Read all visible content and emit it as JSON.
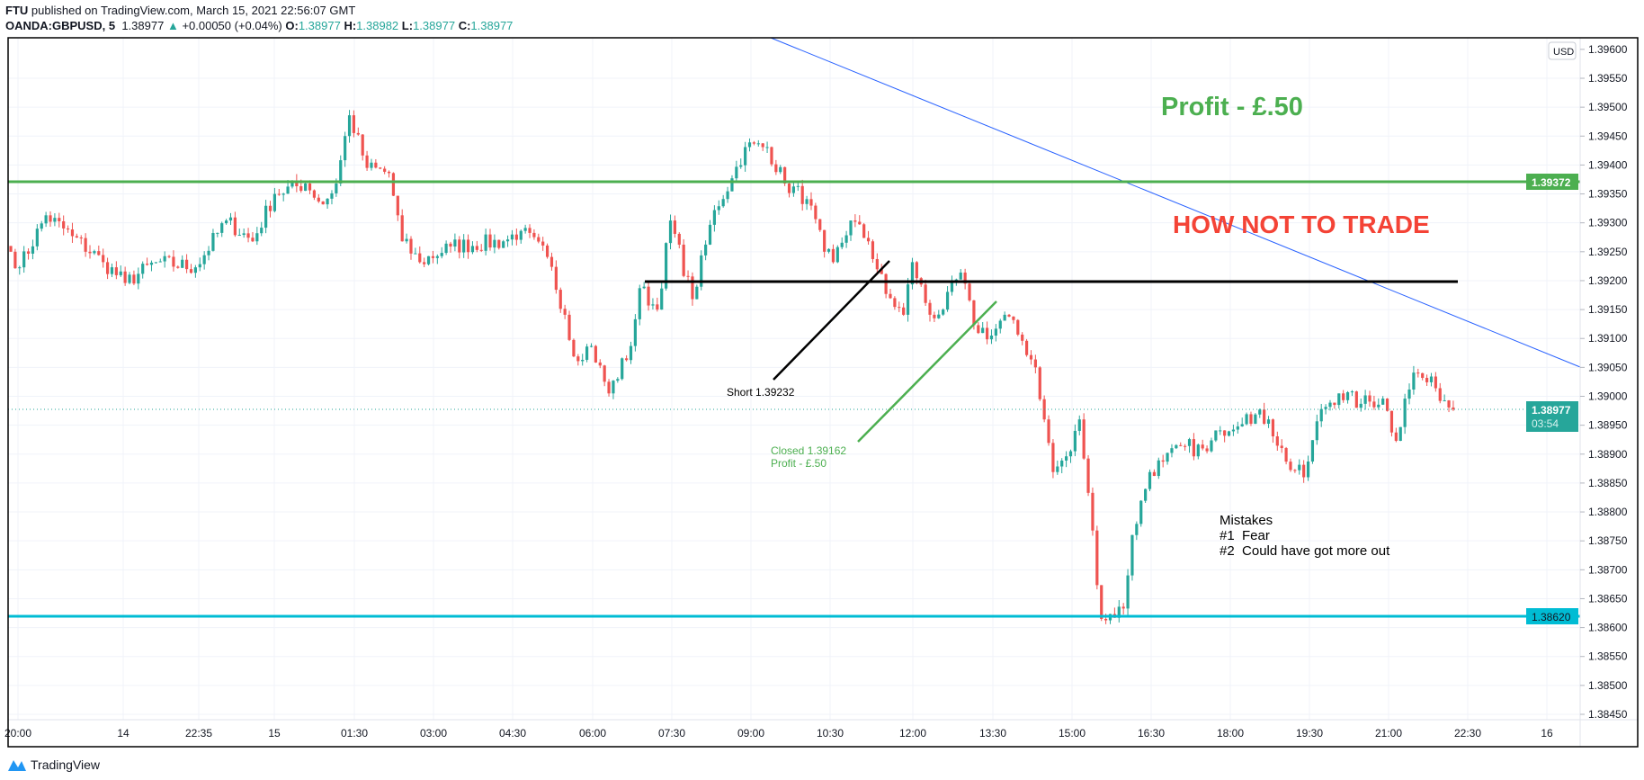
{
  "header": {
    "publisher": "FTU",
    "published_text": "published on TradingView.com, March 15, 2021 22:56:07 GMT",
    "symbol": "OANDA:GBPUSD, 5",
    "last": "1.38977",
    "change": "+0.00050 (+0.04%)",
    "o_label": "O:",
    "o": "1.38977",
    "h_label": "H:",
    "h": "1.38982",
    "l_label": "L:",
    "l": "1.38977",
    "c_label": "C:",
    "c": "1.38977"
  },
  "currency_button": "USD",
  "footer": {
    "logo_text": "TradingView"
  },
  "colors": {
    "up": "#26a69a",
    "down": "#ef5350",
    "resistance": "#4caf50",
    "support": "#00bcd4",
    "trend": "#2962ff"
  },
  "chart_data": {
    "type": "candlestick",
    "symbol": "GBPUSD",
    "timeframe": "5",
    "ylim": [
      1.3842,
      1.3962
    ],
    "y_ticks": [
      "1.39600",
      "1.39550",
      "1.39500",
      "1.39450",
      "1.39400",
      "1.39350",
      "1.39300",
      "1.39250",
      "1.39200",
      "1.39150",
      "1.39100",
      "1.39050",
      "1.39000",
      "1.38950",
      "1.38900",
      "1.38850",
      "1.38800",
      "1.38750",
      "1.38700",
      "1.38650",
      "1.38600",
      "1.38550",
      "1.38500",
      "1.38450"
    ],
    "x_ticks": [
      "20:00",
      "14",
      "22:35",
      "15",
      "01:30",
      "03:00",
      "04:30",
      "06:00",
      "07:30",
      "09:00",
      "10:30",
      "12:00",
      "13:30",
      "15:00",
      "16:30",
      "18:00",
      "19:30",
      "21:00",
      "22:30",
      "16"
    ],
    "close_keypoints": [
      [
        0,
        1.3925
      ],
      [
        2,
        1.39223
      ],
      [
        8,
        1.39313
      ],
      [
        14,
        1.39277
      ],
      [
        21,
        1.39232
      ],
      [
        26,
        1.39196
      ],
      [
        33,
        1.39232
      ],
      [
        42,
        1.39223
      ],
      [
        49,
        1.39304
      ],
      [
        55,
        1.39268
      ],
      [
        60,
        1.3935
      ],
      [
        67,
        1.39368
      ],
      [
        71,
        1.39332
      ],
      [
        74,
        1.39368
      ],
      [
        77,
        1.39486
      ],
      [
        81,
        1.39395
      ],
      [
        86,
        1.39386
      ],
      [
        89,
        1.39268
      ],
      [
        93,
        1.39232
      ],
      [
        100,
        1.39259
      ],
      [
        112,
        1.39268
      ],
      [
        116,
        1.39286
      ],
      [
        122,
        1.39241
      ],
      [
        126,
        1.39141
      ],
      [
        128,
        1.39069
      ],
      [
        132,
        1.39087
      ],
      [
        136,
        1.39005
      ],
      [
        141,
        1.39087
      ],
      [
        143,
        1.39187
      ],
      [
        147,
        1.3915
      ],
      [
        150,
        1.39304
      ],
      [
        155,
        1.39168
      ],
      [
        160,
        1.39322
      ],
      [
        164,
        1.39377
      ],
      [
        167,
        1.39431
      ],
      [
        172,
        1.39431
      ],
      [
        176,
        1.39368
      ],
      [
        181,
        1.39341
      ],
      [
        185,
        1.3925
      ],
      [
        187,
        1.39232
      ],
      [
        191,
        1.39304
      ],
      [
        195,
        1.39268
      ],
      [
        199,
        1.39177
      ],
      [
        203,
        1.39141
      ],
      [
        205,
        1.39232
      ],
      [
        209,
        1.39141
      ],
      [
        212,
        1.3915
      ],
      [
        216,
        1.39214
      ],
      [
        219,
        1.39123
      ],
      [
        223,
        1.39105
      ],
      [
        226,
        1.39141
      ],
      [
        230,
        1.39096
      ],
      [
        233,
        1.3905
      ],
      [
        235,
        1.3896
      ],
      [
        237,
        1.38869
      ],
      [
        241,
        1.38905
      ],
      [
        243,
        1.3896
      ],
      [
        245,
        1.38833
      ],
      [
        248,
        1.38615
      ],
      [
        253,
        1.38633
      ],
      [
        255,
        1.3876
      ],
      [
        259,
        1.38869
      ],
      [
        262,
        1.38887
      ],
      [
        267,
        1.38914
      ],
      [
        272,
        1.38905
      ],
      [
        275,
        1.38941
      ],
      [
        281,
        1.38969
      ],
      [
        286,
        1.3896
      ],
      [
        290,
        1.38887
      ],
      [
        294,
        1.3886
      ],
      [
        298,
        1.38978
      ],
      [
        302,
        1.39005
      ],
      [
        307,
        1.38987
      ],
      [
        312,
        1.38996
      ],
      [
        315,
        1.38923
      ],
      [
        317,
        1.38996
      ],
      [
        319,
        1.39041
      ],
      [
        324,
        1.39014
      ],
      [
        328,
        1.38977
      ]
    ],
    "horizontal_lines": [
      {
        "name": "resistance",
        "price": 1.39372,
        "label": "1.39372"
      },
      {
        "name": "entry-level",
        "price": 1.392
      },
      {
        "name": "support",
        "price": 1.3862,
        "label": "1.38620"
      }
    ],
    "last_price": {
      "label": "1.38977",
      "countdown": "03:54",
      "price": 1.38977
    },
    "annotations": {
      "profit_title": "Profit - £.50",
      "headline": "HOW NOT TO TRADE",
      "short_label": "Short 1.39232",
      "closed_label": "Closed 1.39162",
      "closed_profit": "Profit - £.50",
      "mistakes_title": "Mistakes",
      "mistake_1": "#1  Fear",
      "mistake_2": "#2  Could have got more out"
    }
  }
}
